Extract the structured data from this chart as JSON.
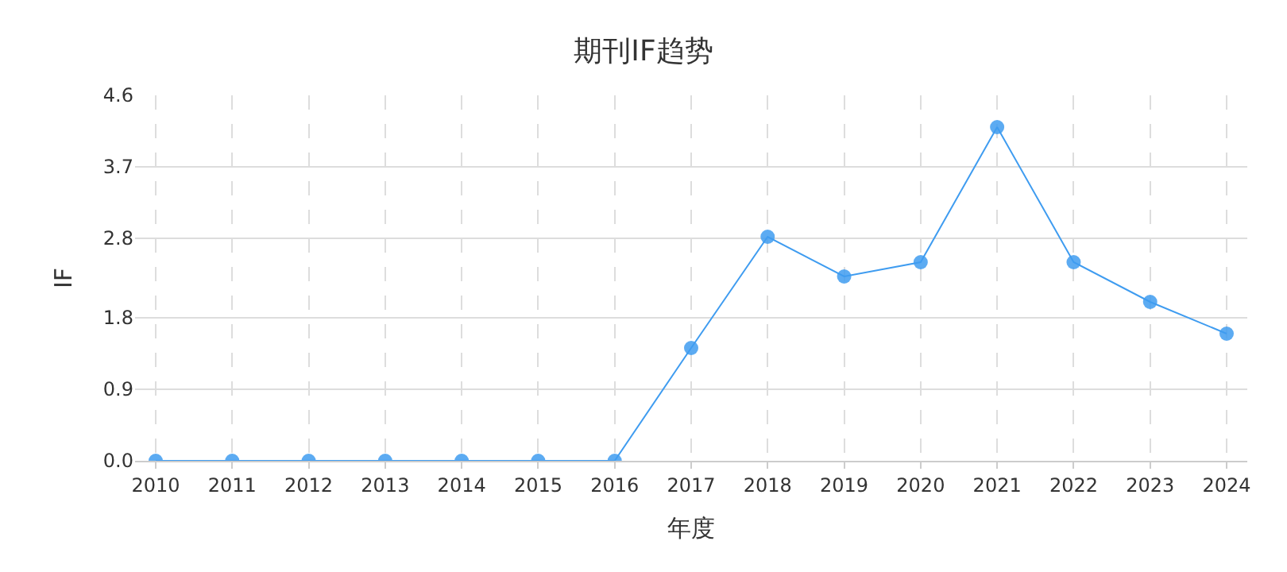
{
  "chart_data": {
    "type": "line",
    "title": "期刊IF趋势",
    "xlabel": "年度",
    "ylabel": "IF",
    "categories": [
      "2010",
      "2011",
      "2012",
      "2013",
      "2014",
      "2015",
      "2016",
      "2017",
      "2018",
      "2019",
      "2020",
      "2021",
      "2022",
      "2023",
      "2024"
    ],
    "series": [
      {
        "color": "#3f9cf0",
        "values": [
          0,
          0,
          0,
          0,
          0,
          0,
          0,
          1.42,
          2.82,
          2.32,
          2.5,
          4.2,
          2.5,
          2.0,
          1.6
        ]
      }
    ],
    "ylim": [
      0,
      4.6
    ],
    "yticks": [
      {
        "value": 0,
        "label": "0.0"
      },
      0.9,
      1.8,
      2.8,
      3.7,
      4.6
    ],
    "grid": true,
    "marker": "circle",
    "line_style": "solid"
  }
}
